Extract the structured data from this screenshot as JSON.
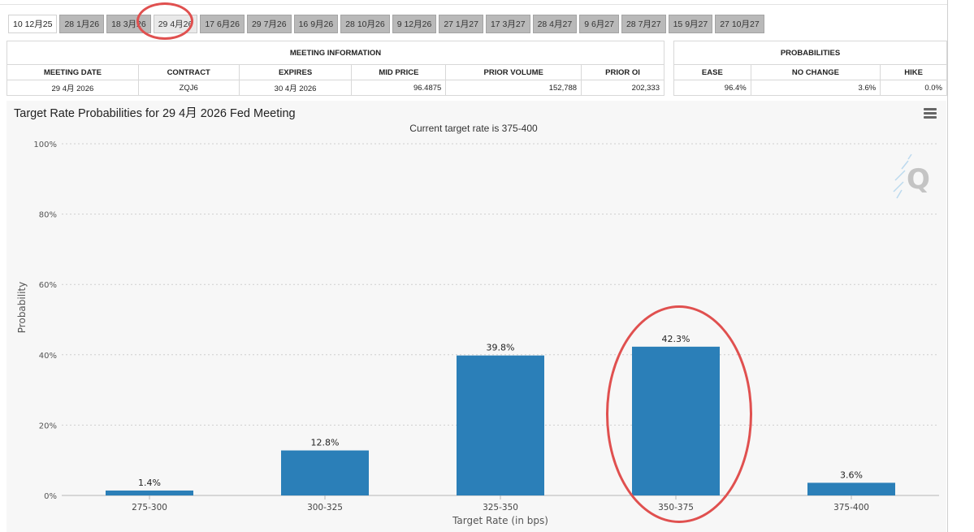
{
  "tabs": [
    "10 12月25",
    "28 1月26",
    "18 3月26",
    "29 4月26",
    "17 6月26",
    "29 7月26",
    "16 9月26",
    "28 10月26",
    "9 12月26",
    "27 1月27",
    "17 3月27",
    "28 4月27",
    "9 6月27",
    "28 7月27",
    "15 9月27",
    "27 10月27"
  ],
  "active_tab_index": 0,
  "circled_tab_index": 3,
  "meeting_info": {
    "title": "MEETING INFORMATION",
    "headers": [
      "MEETING DATE",
      "CONTRACT",
      "EXPIRES",
      "MID PRICE",
      "PRIOR VOLUME",
      "PRIOR OI"
    ],
    "row": [
      "29 4月 2026",
      "ZQJ6",
      "30 4月 2026",
      "96.4875",
      "152,788",
      "202,333"
    ]
  },
  "probabilities": {
    "title": "PROBABILITIES",
    "headers": [
      "EASE",
      "NO CHANGE",
      "HIKE"
    ],
    "row": [
      "96.4%",
      "3.6%",
      "0.0%"
    ]
  },
  "chart_title": "Target Rate Probabilities for 29 4月 2026 Fed Meeting",
  "chart_subtitle": "Current target rate is 375-400",
  "chart_data": {
    "type": "bar",
    "categories": [
      "275-300",
      "300-325",
      "325-350",
      "350-375",
      "375-400"
    ],
    "values": [
      1.4,
      12.8,
      39.8,
      42.3,
      3.6
    ],
    "data_labels": [
      "1.4%",
      "12.8%",
      "39.8%",
      "42.3%",
      "3.6%"
    ],
    "xlabel": "Target Rate (in bps)",
    "ylabel": "Probability",
    "ylim": [
      0,
      100
    ],
    "yticks": [
      0,
      20,
      40,
      60,
      80,
      100
    ],
    "ytick_labels": [
      "0%",
      "20%",
      "40%",
      "60%",
      "80%",
      "100%"
    ],
    "grid": "horizontal dotted",
    "bar_color": "#2b7fb8"
  },
  "annotation_color": "#e0504f",
  "watermark_letter": "Q"
}
